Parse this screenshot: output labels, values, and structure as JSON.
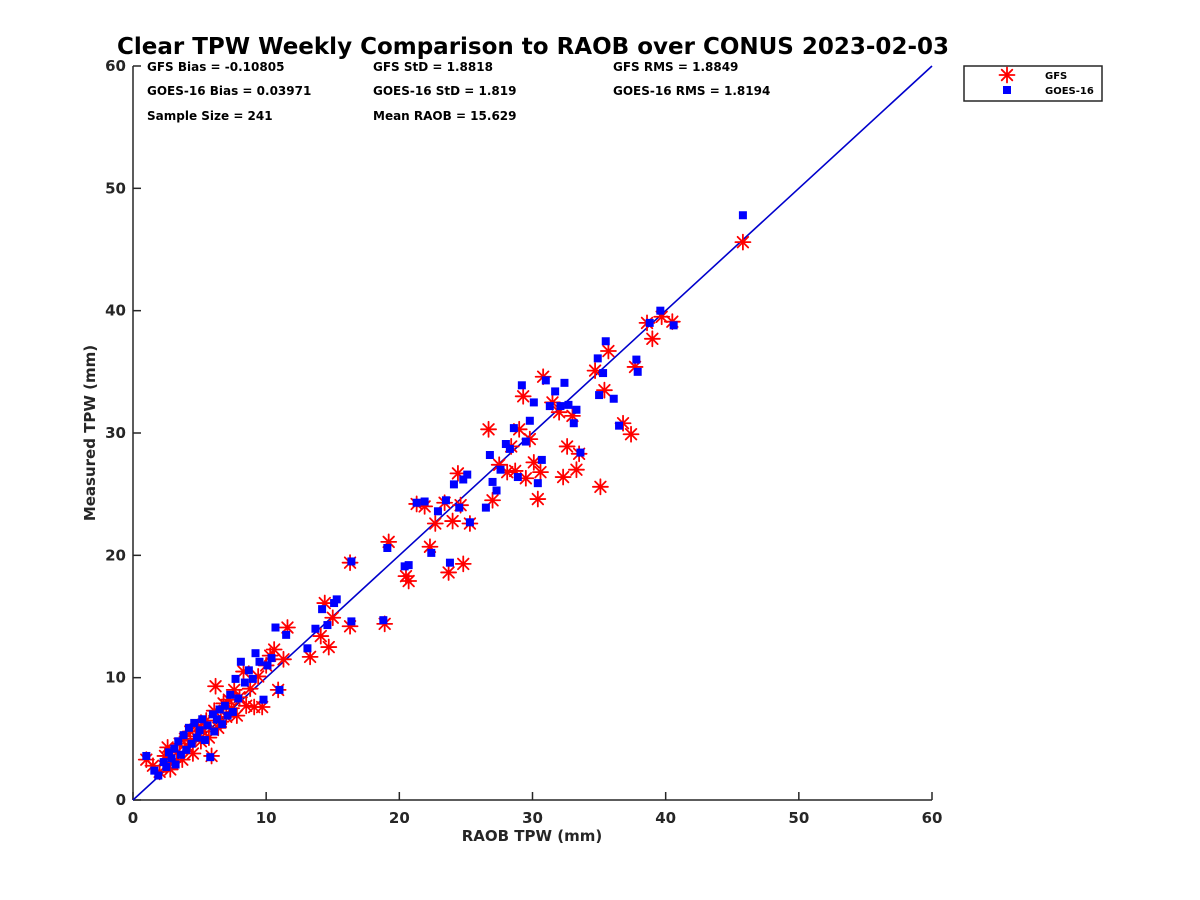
{
  "chart_data": {
    "type": "scatter",
    "title": "Clear TPW Weekly Comparison to RAOB over CONUS 2023-02-03",
    "xlabel": "RAOB TPW (mm)",
    "ylabel": "Measured TPW (mm)",
    "xlim": [
      0,
      60
    ],
    "ylim": [
      0,
      60
    ],
    "xticks": [
      "0",
      "10",
      "20",
      "30",
      "40",
      "50",
      "60"
    ],
    "yticks": [
      "0",
      "10",
      "20",
      "30",
      "40",
      "50",
      "60"
    ],
    "grid": false,
    "legend_position": "top-right, outside plot",
    "reference_line": {
      "name": "1:1 line",
      "x": [
        0,
        60
      ],
      "y": [
        0,
        60
      ],
      "color": "#0000cc"
    },
    "stats": {
      "gfs_bias": "GFS Bias = -0.10805",
      "gfs_std": "GFS StD = 1.8818",
      "gfs_rms": "GFS RMS = 1.8849",
      "goes_bias": "GOES-16 Bias = 0.03971",
      "goes_std": "GOES-16 StD = 1.819",
      "goes_rms": "GOES-16 RMS = 1.8194",
      "sample_size": "Sample Size = 241",
      "mean_raob": "Mean RAOB = 15.629"
    },
    "series": [
      {
        "name": "GFS",
        "marker": "asterisk",
        "color": "#ff0000",
        "points": [
          [
            1.0,
            3.3
          ],
          [
            1.5,
            2.8
          ],
          [
            2.0,
            2.3
          ],
          [
            2.4,
            3.6
          ],
          [
            2.6,
            4.3
          ],
          [
            2.8,
            2.5
          ],
          [
            3.0,
            3.1
          ],
          [
            3.3,
            3.9
          ],
          [
            3.5,
            4.6
          ],
          [
            3.7,
            3.3
          ],
          [
            3.9,
            5.0
          ],
          [
            4.1,
            4.4
          ],
          [
            4.3,
            5.6
          ],
          [
            4.5,
            3.8
          ],
          [
            4.7,
            5.2
          ],
          [
            4.9,
            6.0
          ],
          [
            5.1,
            4.8
          ],
          [
            5.3,
            5.6
          ],
          [
            5.5,
            6.5
          ],
          [
            5.7,
            5.1
          ],
          [
            5.9,
            3.6
          ],
          [
            6.1,
            7.3
          ],
          [
            6.2,
            9.3
          ],
          [
            6.4,
            5.9
          ],
          [
            6.6,
            6.4
          ],
          [
            6.8,
            7.9
          ],
          [
            7.0,
            6.8
          ],
          [
            7.2,
            8.2
          ],
          [
            7.4,
            7.5
          ],
          [
            7.6,
            9.0
          ],
          [
            7.8,
            6.9
          ],
          [
            8.0,
            8.4
          ],
          [
            8.3,
            10.5
          ],
          [
            8.5,
            7.7
          ],
          [
            8.8,
            9.1
          ],
          [
            9.1,
            7.6
          ],
          [
            9.4,
            10.1
          ],
          [
            9.7,
            7.6
          ],
          [
            10.0,
            11.0
          ],
          [
            10.3,
            11.8
          ],
          [
            10.6,
            12.3
          ],
          [
            10.9,
            9.0
          ],
          [
            11.3,
            11.5
          ],
          [
            11.6,
            14.1
          ],
          [
            13.3,
            11.7
          ],
          [
            14.1,
            13.4
          ],
          [
            14.4,
            16.1
          ],
          [
            14.7,
            12.5
          ],
          [
            15.0,
            14.9
          ],
          [
            16.3,
            14.2
          ],
          [
            16.3,
            19.4
          ],
          [
            18.9,
            14.4
          ],
          [
            19.2,
            21.1
          ],
          [
            20.5,
            18.3
          ],
          [
            20.7,
            17.9
          ],
          [
            21.3,
            24.2
          ],
          [
            21.9,
            24.0
          ],
          [
            22.3,
            20.7
          ],
          [
            22.7,
            22.6
          ],
          [
            23.4,
            24.3
          ],
          [
            23.7,
            18.6
          ],
          [
            24.0,
            22.8
          ],
          [
            24.4,
            26.7
          ],
          [
            24.6,
            24.1
          ],
          [
            24.8,
            19.3
          ],
          [
            25.3,
            22.6
          ],
          [
            26.7,
            30.3
          ],
          [
            27.0,
            24.5
          ],
          [
            27.5,
            27.4
          ],
          [
            28.1,
            26.8
          ],
          [
            28.4,
            28.9
          ],
          [
            28.7,
            26.9
          ],
          [
            29.0,
            30.3
          ],
          [
            29.3,
            33.0
          ],
          [
            29.5,
            26.3
          ],
          [
            29.8,
            29.5
          ],
          [
            30.1,
            27.6
          ],
          [
            30.4,
            24.6
          ],
          [
            30.6,
            26.8
          ],
          [
            30.8,
            34.6
          ],
          [
            31.5,
            32.5
          ],
          [
            32.0,
            31.7
          ],
          [
            32.3,
            26.4
          ],
          [
            32.6,
            28.9
          ],
          [
            33.0,
            31.4
          ],
          [
            33.3,
            27.0
          ],
          [
            33.5,
            28.3
          ],
          [
            34.7,
            35.1
          ],
          [
            35.1,
            25.6
          ],
          [
            35.4,
            33.5
          ],
          [
            35.7,
            36.7
          ],
          [
            36.8,
            30.8
          ],
          [
            37.4,
            29.9
          ],
          [
            37.7,
            35.4
          ],
          [
            38.6,
            39.0
          ],
          [
            39.0,
            37.7
          ],
          [
            39.7,
            39.5
          ],
          [
            40.5,
            39.1
          ],
          [
            45.8,
            45.6
          ]
        ]
      },
      {
        "name": "GOES-16",
        "marker": "square",
        "color": "#0000ff",
        "points": [
          [
            1.0,
            3.6
          ],
          [
            1.6,
            2.4
          ],
          [
            1.9,
            2.0
          ],
          [
            2.3,
            3.1
          ],
          [
            2.5,
            2.7
          ],
          [
            2.7,
            3.9
          ],
          [
            2.9,
            3.4
          ],
          [
            3.1,
            4.2
          ],
          [
            3.2,
            2.9
          ],
          [
            3.4,
            4.8
          ],
          [
            3.6,
            3.7
          ],
          [
            3.8,
            5.3
          ],
          [
            4.0,
            4.1
          ],
          [
            4.2,
            5.9
          ],
          [
            4.4,
            4.6
          ],
          [
            4.6,
            6.3
          ],
          [
            4.8,
            5.1
          ],
          [
            5.0,
            5.7
          ],
          [
            5.2,
            6.6
          ],
          [
            5.4,
            4.9
          ],
          [
            5.6,
            6.1
          ],
          [
            5.8,
            3.5
          ],
          [
            6.0,
            7.0
          ],
          [
            6.1,
            5.6
          ],
          [
            6.3,
            6.6
          ],
          [
            6.5,
            7.4
          ],
          [
            6.7,
            6.2
          ],
          [
            6.9,
            7.7
          ],
          [
            7.1,
            6.9
          ],
          [
            7.3,
            8.6
          ],
          [
            7.5,
            7.2
          ],
          [
            7.7,
            9.9
          ],
          [
            7.9,
            8.3
          ],
          [
            8.1,
            11.3
          ],
          [
            8.4,
            9.6
          ],
          [
            8.7,
            10.6
          ],
          [
            9.0,
            9.9
          ],
          [
            9.2,
            12.0
          ],
          [
            9.5,
            11.3
          ],
          [
            9.8,
            8.2
          ],
          [
            10.1,
            11.0
          ],
          [
            10.4,
            11.6
          ],
          [
            10.7,
            14.1
          ],
          [
            11.0,
            9.0
          ],
          [
            11.5,
            13.5
          ],
          [
            13.1,
            12.4
          ],
          [
            13.7,
            14.0
          ],
          [
            14.2,
            15.6
          ],
          [
            14.6,
            14.3
          ],
          [
            15.1,
            16.1
          ],
          [
            15.3,
            16.4
          ],
          [
            16.4,
            14.6
          ],
          [
            16.4,
            19.5
          ],
          [
            18.8,
            14.7
          ],
          [
            19.1,
            20.6
          ],
          [
            20.4,
            19.1
          ],
          [
            20.7,
            19.2
          ],
          [
            21.3,
            24.3
          ],
          [
            21.9,
            24.4
          ],
          [
            22.4,
            20.2
          ],
          [
            22.9,
            23.6
          ],
          [
            23.5,
            24.5
          ],
          [
            23.8,
            19.4
          ],
          [
            24.1,
            25.8
          ],
          [
            24.5,
            23.9
          ],
          [
            24.8,
            26.2
          ],
          [
            25.1,
            26.6
          ],
          [
            25.3,
            22.7
          ],
          [
            26.5,
            23.9
          ],
          [
            26.8,
            28.2
          ],
          [
            27.0,
            26.0
          ],
          [
            27.3,
            25.3
          ],
          [
            27.6,
            27.0
          ],
          [
            28.0,
            29.1
          ],
          [
            28.3,
            28.7
          ],
          [
            28.6,
            30.4
          ],
          [
            28.9,
            26.4
          ],
          [
            29.2,
            33.9
          ],
          [
            29.5,
            29.3
          ],
          [
            29.8,
            31.0
          ],
          [
            30.1,
            32.5
          ],
          [
            30.4,
            25.9
          ],
          [
            30.7,
            27.8
          ],
          [
            31.0,
            34.3
          ],
          [
            31.3,
            32.2
          ],
          [
            31.7,
            33.4
          ],
          [
            32.1,
            32.2
          ],
          [
            32.4,
            34.1
          ],
          [
            32.7,
            32.3
          ],
          [
            33.1,
            30.8
          ],
          [
            33.3,
            31.9
          ],
          [
            33.6,
            28.4
          ],
          [
            34.9,
            36.1
          ],
          [
            35.0,
            33.1
          ],
          [
            35.3,
            34.9
          ],
          [
            35.5,
            37.5
          ],
          [
            36.1,
            32.8
          ],
          [
            36.5,
            30.6
          ],
          [
            37.8,
            36.0
          ],
          [
            37.9,
            35.0
          ],
          [
            38.8,
            39.0
          ],
          [
            39.6,
            40.0
          ],
          [
            40.6,
            38.8
          ],
          [
            45.8,
            47.8
          ]
        ]
      }
    ]
  }
}
